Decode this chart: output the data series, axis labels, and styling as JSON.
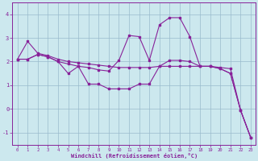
{
  "xlabel": "Windchill (Refroidissement éolien,°C)",
  "bg_color": "#cce8ee",
  "grid_color": "#99bbcc",
  "line_color": "#882299",
  "xlim": [
    -0.5,
    23.5
  ],
  "ylim": [
    -1.5,
    4.5
  ],
  "yticks": [
    -1,
    0,
    1,
    2,
    3,
    4
  ],
  "xticks": [
    0,
    1,
    2,
    3,
    4,
    5,
    6,
    7,
    8,
    9,
    10,
    11,
    12,
    13,
    14,
    15,
    16,
    17,
    18,
    19,
    20,
    21,
    22,
    23
  ],
  "series1_x": [
    0,
    1,
    2,
    3,
    4,
    5,
    6,
    7,
    8,
    9,
    10,
    11,
    12,
    13,
    14,
    15,
    16,
    17,
    18,
    19,
    20,
    21,
    22,
    23
  ],
  "series1_y": [
    2.1,
    2.85,
    2.35,
    2.25,
    2.1,
    2.0,
    1.95,
    1.9,
    1.85,
    1.8,
    1.75,
    1.75,
    1.75,
    1.75,
    1.8,
    1.8,
    1.8,
    1.8,
    1.8,
    1.8,
    1.75,
    1.7,
    -0.05,
    -1.2
  ],
  "series2_x": [
    0,
    1,
    2,
    3,
    4,
    5,
    6,
    7,
    8,
    9,
    10,
    11,
    12,
    13,
    14,
    15,
    16,
    17,
    18,
    19,
    20,
    21,
    22,
    23
  ],
  "series2_y": [
    2.1,
    2.1,
    2.3,
    2.2,
    2.0,
    1.9,
    1.8,
    1.75,
    1.65,
    1.6,
    2.05,
    3.1,
    3.05,
    2.05,
    3.55,
    3.85,
    3.85,
    3.05,
    1.8,
    1.8,
    1.7,
    1.5,
    -0.05,
    -1.2
  ],
  "series3_x": [
    0,
    1,
    2,
    3,
    4,
    5,
    6,
    7,
    8,
    9,
    10,
    11,
    12,
    13,
    14,
    15,
    16,
    17,
    18,
    19,
    20,
    21,
    22,
    23
  ],
  "series3_y": [
    2.1,
    2.1,
    2.3,
    2.2,
    2.0,
    1.5,
    1.8,
    1.05,
    1.05,
    0.85,
    0.85,
    0.85,
    1.05,
    1.05,
    1.8,
    2.05,
    2.05,
    2.0,
    1.8,
    1.8,
    1.7,
    1.5,
    -0.05,
    -1.2
  ]
}
